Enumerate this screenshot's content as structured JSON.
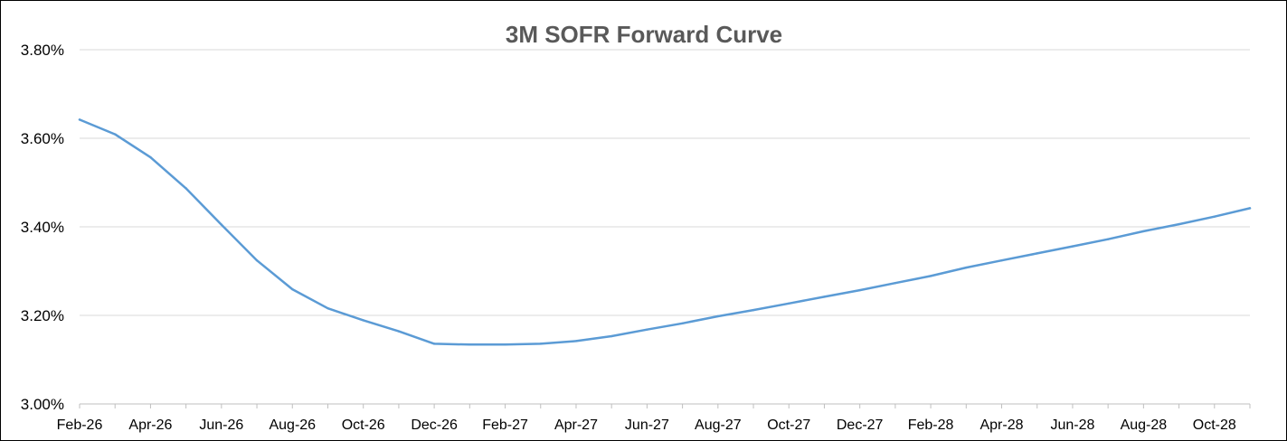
{
  "chart_data": {
    "type": "line",
    "title": "3M SOFR Forward Curve",
    "xlabel": "",
    "ylabel": "",
    "ylim": [
      3.0,
      3.8
    ],
    "yticks": [
      "3.00%",
      "3.20%",
      "3.40%",
      "3.60%",
      "3.80%"
    ],
    "xticks": [
      "Feb-26",
      "Apr-26",
      "Jun-26",
      "Aug-26",
      "Oct-26",
      "Dec-26",
      "Feb-27",
      "Apr-27",
      "Jun-27",
      "Aug-27",
      "Oct-27",
      "Dec-27",
      "Feb-28",
      "Apr-28",
      "Jun-28",
      "Aug-28",
      "Oct-28"
    ],
    "grid": "horizontal",
    "legend": "none",
    "line_color": "#5B9BD5",
    "x": [
      "Feb-26",
      "Mar-26",
      "Apr-26",
      "May-26",
      "Jun-26",
      "Jul-26",
      "Aug-26",
      "Sep-26",
      "Oct-26",
      "Nov-26",
      "Dec-26",
      "Jan-27",
      "Feb-27",
      "Mar-27",
      "Apr-27",
      "May-27",
      "Jun-27",
      "Jul-27",
      "Aug-27",
      "Sep-27",
      "Oct-27",
      "Nov-27",
      "Dec-27",
      "Jan-28",
      "Feb-28",
      "Mar-28",
      "Apr-28",
      "May-28",
      "Jun-28",
      "Jul-28",
      "Aug-28",
      "Sep-28",
      "Oct-28",
      "Nov-28"
    ],
    "series": [
      {
        "values": [
          3.642,
          3.609,
          3.557,
          3.487,
          3.405,
          3.324,
          3.259,
          3.216,
          3.189,
          3.164,
          3.136,
          3.134,
          3.134,
          3.136,
          3.142,
          3.153,
          3.168,
          3.182,
          3.198,
          3.212,
          3.227,
          3.242,
          3.257,
          3.273,
          3.289,
          3.308,
          3.324,
          3.34,
          3.356,
          3.372,
          3.39,
          3.406,
          3.423,
          3.442
        ]
      }
    ]
  }
}
